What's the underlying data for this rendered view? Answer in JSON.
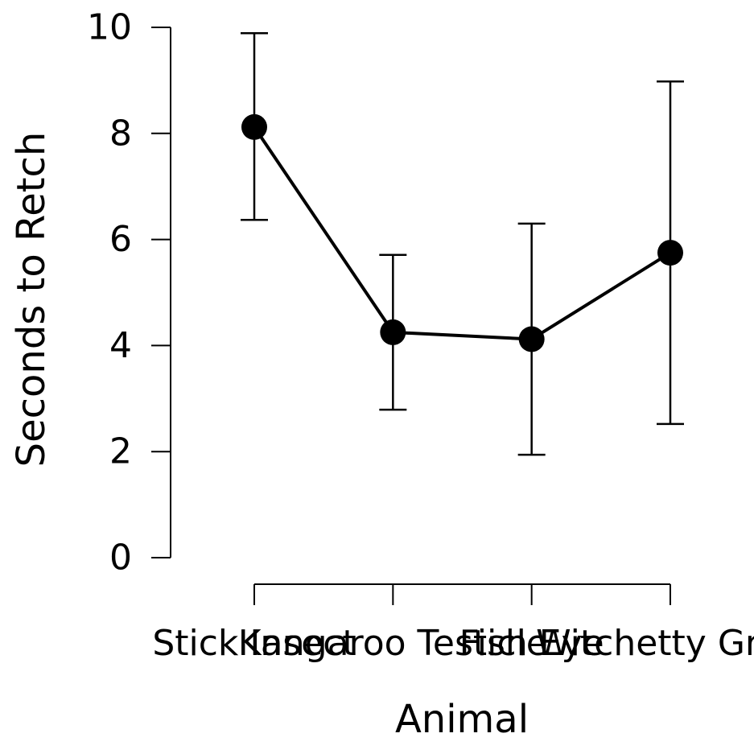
{
  "chart_data": {
    "type": "line",
    "title": "",
    "xlabel": "Animal",
    "ylabel": "Seconds to Retch",
    "categories": [
      "Stick Insect",
      "Kangaroo Testicle",
      "Fish Eye",
      "Witchetty Grub"
    ],
    "series": [
      {
        "values": [
          8.12,
          4.25,
          4.12,
          5.75
        ],
        "error_low": [
          6.37,
          2.79,
          1.94,
          2.52
        ],
        "error_high": [
          9.89,
          5.71,
          6.3,
          8.98
        ]
      }
    ],
    "yticks": [
      "0",
      "2",
      "4",
      "6",
      "8",
      "10"
    ],
    "ylim": [
      0,
      10
    ],
    "grid": false,
    "legend": "none",
    "colors": {
      "line": "#000000",
      "point": "#000000",
      "axis": "#000000"
    }
  }
}
